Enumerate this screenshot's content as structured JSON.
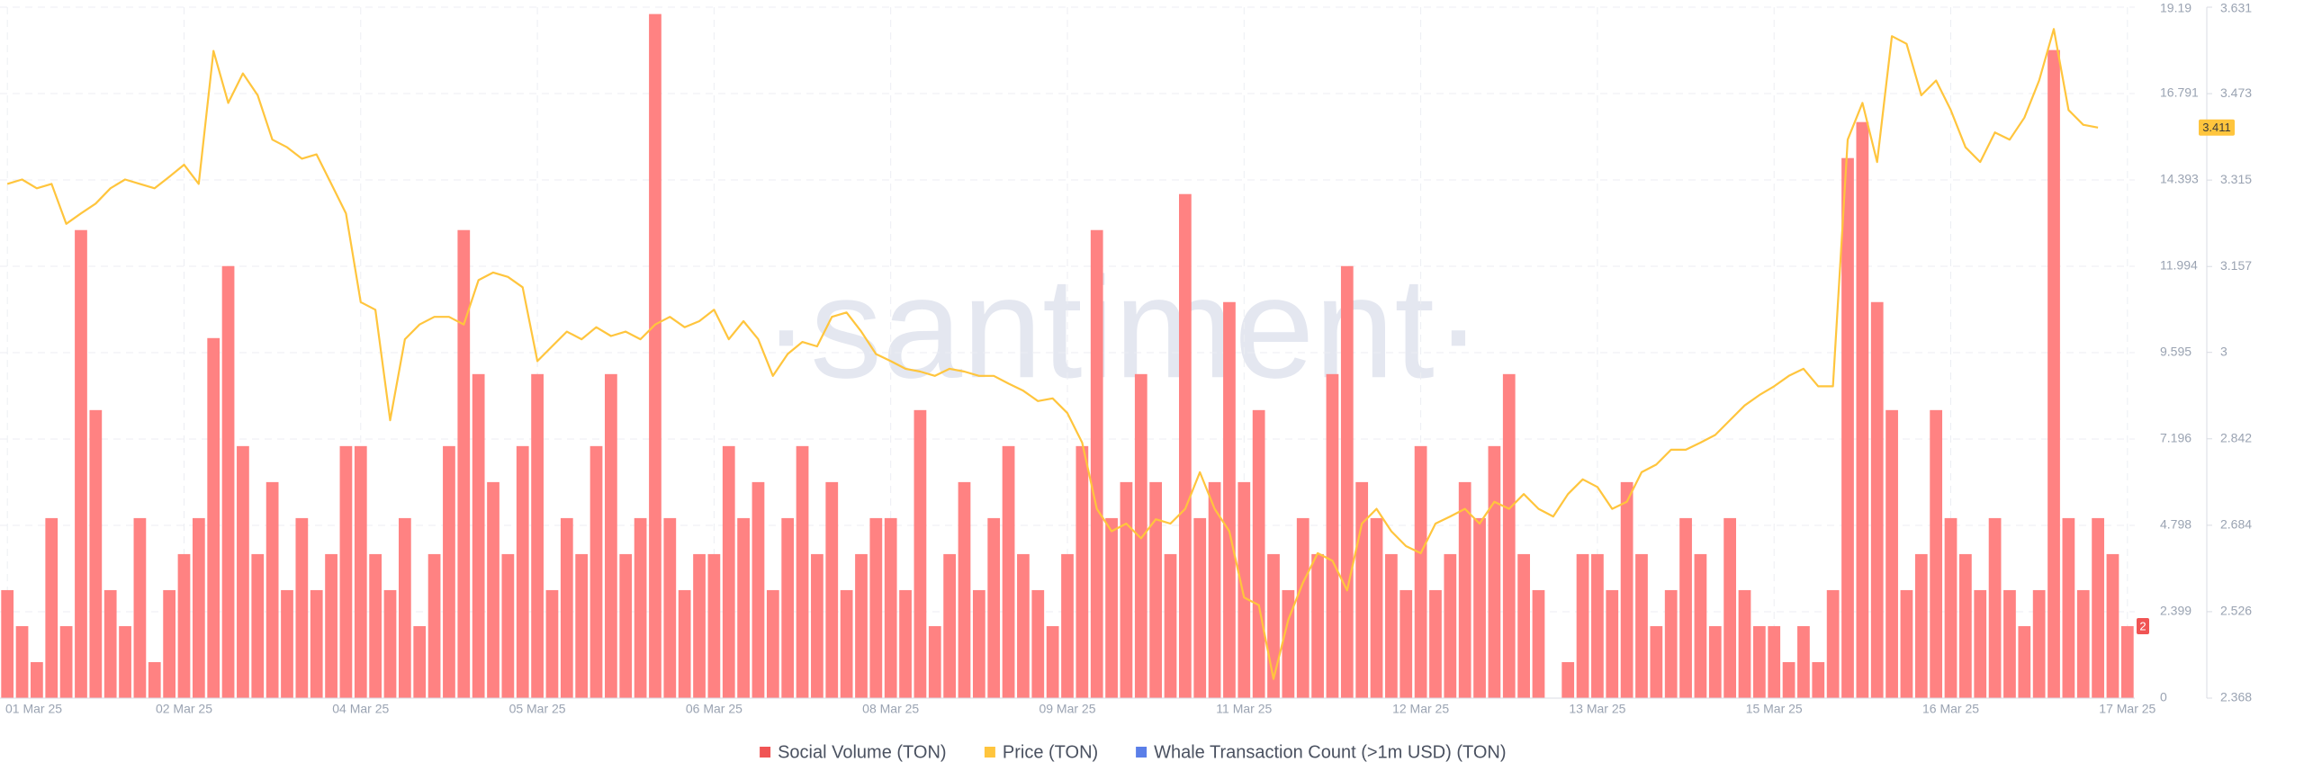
{
  "chart_data": {
    "type": "combo",
    "watermark": "·santiment·",
    "grid": true,
    "categories": [
      "01 Mar 25",
      null,
      null,
      null,
      null,
      null,
      null,
      null,
      null,
      null,
      null,
      null,
      "02 Mar 25",
      null,
      null,
      null,
      null,
      null,
      null,
      null,
      null,
      null,
      null,
      null,
      "04 Mar 25",
      null,
      null,
      null,
      null,
      null,
      null,
      null,
      null,
      null,
      null,
      null,
      "05 Mar 25",
      null,
      null,
      null,
      null,
      null,
      null,
      null,
      null,
      null,
      null,
      null,
      "06 Mar 25",
      null,
      null,
      null,
      null,
      null,
      null,
      null,
      null,
      null,
      null,
      null,
      "08 Mar 25",
      null,
      null,
      null,
      null,
      null,
      null,
      null,
      null,
      null,
      null,
      null,
      "09 Mar 25",
      null,
      null,
      null,
      null,
      null,
      null,
      null,
      null,
      null,
      null,
      null,
      "11 Mar 25",
      null,
      null,
      null,
      null,
      null,
      null,
      null,
      null,
      null,
      null,
      null,
      "12 Mar 25",
      null,
      null,
      null,
      null,
      null,
      null,
      null,
      null,
      null,
      null,
      null,
      "13 Mar 25",
      null,
      null,
      null,
      null,
      null,
      null,
      null,
      null,
      null,
      null,
      null,
      "15 Mar 25",
      null,
      null,
      null,
      null,
      null,
      null,
      null,
      null,
      null,
      null,
      null,
      "16 Mar 25",
      null,
      null,
      null,
      null,
      null,
      null,
      null,
      null,
      null,
      null,
      null,
      "17 Mar 25"
    ],
    "ylim": [
      0,
      19.19
    ],
    "yticks": [
      0,
      2.399,
      4.798,
      7.196,
      9.595,
      11.994,
      14.393,
      16.791,
      19.19
    ],
    "y2lim": [
      2.368,
      3.631
    ],
    "y2ticks": [
      2.368,
      2.526,
      2.684,
      2.842,
      3,
      3.157,
      3.315,
      3.473,
      3.631
    ],
    "series": [
      {
        "name": "Social Volume (TON)",
        "type": "bar",
        "color": "#ff8282",
        "legend_color": "#f05454",
        "values": [
          3,
          2,
          1,
          5,
          2,
          13,
          8,
          3,
          2,
          5,
          1,
          3,
          4,
          5,
          10,
          12,
          7,
          4,
          6,
          3,
          5,
          3,
          4,
          7,
          7,
          4,
          3,
          5,
          2,
          4,
          7,
          13,
          9,
          6,
          4,
          7,
          9,
          3,
          5,
          4,
          7,
          9,
          4,
          5,
          19,
          5,
          3,
          4,
          4,
          7,
          5,
          6,
          3,
          5,
          7,
          4,
          6,
          3,
          4,
          5,
          5,
          3,
          8,
          2,
          4,
          6,
          3,
          5,
          7,
          4,
          3,
          2,
          4,
          7,
          13,
          5,
          6,
          9,
          6,
          4,
          14,
          5,
          6,
          11,
          6,
          8,
          4,
          3,
          5,
          4,
          9,
          12,
          6,
          5,
          4,
          3,
          7,
          3,
          4,
          6,
          5,
          7,
          9,
          4,
          3,
          0,
          1,
          4,
          4,
          3,
          6,
          4,
          2,
          3,
          5,
          4,
          2,
          5,
          3,
          2,
          2,
          1,
          2,
          1,
          3,
          15,
          16,
          11,
          8,
          3,
          4,
          8,
          5,
          4,
          3,
          5,
          3,
          2,
          3,
          18,
          5,
          3,
          5,
          4,
          2
        ]
      },
      {
        "name": "Price (TON)",
        "type": "line",
        "axis": "y2",
        "color": "#ffc53d",
        "values": [
          3.308,
          3.316,
          3.3,
          3.308,
          3.235,
          3.254,
          3.272,
          3.3,
          3.316,
          3.308,
          3.3,
          3.321,
          3.343,
          3.308,
          3.551,
          3.456,
          3.51,
          3.47,
          3.389,
          3.375,
          3.354,
          3.362,
          3.308,
          3.254,
          3.092,
          3.078,
          2.876,
          3.024,
          3.051,
          3.065,
          3.065,
          3.051,
          3.132,
          3.146,
          3.138,
          3.119,
          2.984,
          3.011,
          3.038,
          3.024,
          3.046,
          3.03,
          3.038,
          3.024,
          3.051,
          3.065,
          3.046,
          3.057,
          3.078,
          3.024,
          3.057,
          3.024,
          2.957,
          2.997,
          3.019,
          3.011,
          3.065,
          3.073,
          3.038,
          2.997,
          2.984,
          2.97,
          2.965,
          2.957,
          2.97,
          2.965,
          2.957,
          2.957,
          2.943,
          2.93,
          2.911,
          2.916,
          2.889,
          2.835,
          2.714,
          2.673,
          2.687,
          2.66,
          2.695,
          2.687,
          2.714,
          2.781,
          2.714,
          2.673,
          2.552,
          2.538,
          2.403,
          2.511,
          2.579,
          2.633,
          2.619,
          2.565,
          2.687,
          2.714,
          2.673,
          2.646,
          2.633,
          2.687,
          2.7,
          2.714,
          2.687,
          2.727,
          2.714,
          2.741,
          2.714,
          2.7,
          2.741,
          2.768,
          2.754,
          2.714,
          2.727,
          2.781,
          2.795,
          2.822,
          2.822,
          2.835,
          2.849,
          2.876,
          2.903,
          2.922,
          2.938,
          2.957,
          2.97,
          2.938,
          2.938,
          3.389,
          3.456,
          3.348,
          3.578,
          3.564,
          3.47,
          3.497,
          3.443,
          3.375,
          3.348,
          3.402,
          3.389,
          3.429,
          3.497,
          3.591,
          3.443,
          3.416,
          3.411,
          null,
          null
        ]
      },
      {
        "name": "Whale Transaction Count (>1m USD) (TON)",
        "type": "bar",
        "color": "#5b7fe8"
      }
    ]
  }
}
